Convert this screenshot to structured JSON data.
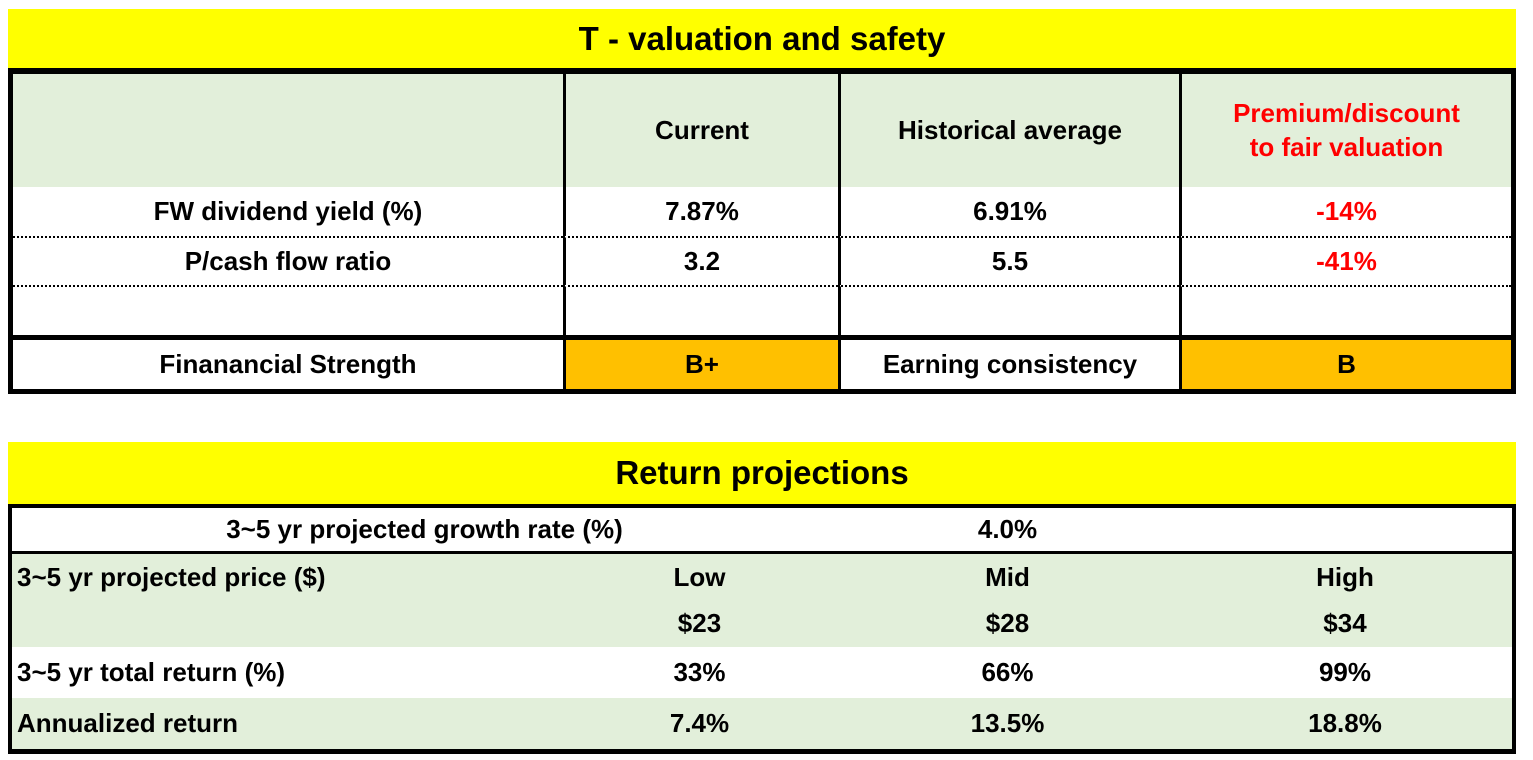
{
  "colors": {
    "title_bg": "#FFFF00",
    "header_bg": "#E2EFDA",
    "grade_bg": "#FFC000",
    "negative_text": "#FF0000"
  },
  "valuation": {
    "title": "T - valuation and safety",
    "headers": {
      "current": "Current",
      "historical": "Historical average",
      "premium": "Premium/discount\nto fair valuation"
    },
    "dividend": {
      "label": "FW dividend yield  (%)",
      "current": "7.87%",
      "historical": "6.91%",
      "premium": "-14%"
    },
    "pcf": {
      "label": "P/cash flow ratio",
      "current": "3.2",
      "historical": "5.5",
      "premium": "-41%"
    },
    "strength": {
      "label": "Finanancial Strength",
      "grade": "B+",
      "label2": "Earning consistency",
      "grade2": "B"
    }
  },
  "projections": {
    "title": "Return projections",
    "growth": {
      "label": "3~5 yr projected growth rate (%)",
      "value": "4.0%"
    },
    "price": {
      "label": "3~5 yr projected price ($)",
      "low": "Low",
      "mid": "Mid",
      "high": "High",
      "low_price": "$23",
      "mid_price": "$28",
      "high_price": "$34"
    },
    "total": {
      "label": "3~5 yr total return (%)",
      "low": "33%",
      "mid": "66%",
      "high": "99%"
    },
    "annualized": {
      "label": "Annualized return",
      "low": "7.4%",
      "mid": "13.5%",
      "high": "18.8%"
    }
  },
  "chart_data": [
    {
      "type": "table",
      "title": "T - valuation and safety",
      "columns": [
        "",
        "Current",
        "Historical average",
        "Premium/discount to fair valuation"
      ],
      "rows": [
        [
          "FW dividend yield  (%)",
          "7.87%",
          "6.91%",
          "-14%"
        ],
        [
          "P/cash flow ratio",
          "3.2",
          "5.5",
          "-41%"
        ],
        [
          "",
          "",
          "",
          ""
        ],
        [
          "Finanancial Strength",
          "B+",
          "Earning consistency",
          "B"
        ]
      ]
    },
    {
      "type": "table",
      "title": "Return projections",
      "columns": [
        "",
        "Low",
        "Mid",
        "High"
      ],
      "rows": [
        [
          "3~5 yr projected growth rate (%)",
          "4.0%",
          "",
          ""
        ],
        [
          "3~5 yr projected price ($)",
          "$23",
          "$28",
          "$34"
        ],
        [
          "3~5 yr total return (%)",
          "33%",
          "66%",
          "99%"
        ],
        [
          "Annualized return",
          "7.4%",
          "13.5%",
          "18.8%"
        ]
      ]
    }
  ]
}
